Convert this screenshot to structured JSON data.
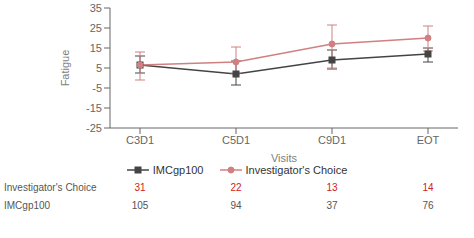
{
  "chart_data": {
    "type": "line",
    "categories": [
      "C3D1",
      "C5D1",
      "C9D1",
      "EOT"
    ],
    "x_label": "Visits",
    "y_label": "Fatigue",
    "ylim": [
      -25,
      35
    ],
    "yticks": [
      -25,
      -15,
      -5,
      5,
      15,
      25,
      35
    ],
    "grid": false,
    "legend": "bottom",
    "series": [
      {
        "name": "IMCgp100",
        "color": "#444444",
        "marker": "square",
        "values": [
          6.5,
          2.0,
          9.0,
          12.0
        ],
        "error_upper": [
          4.5,
          6.5,
          5.0,
          3.0
        ],
        "error_lower": [
          4.0,
          5.5,
          4.5,
          4.0
        ]
      },
      {
        "name": "Investigator's Choice",
        "color": "#d08080",
        "marker": "circle",
        "values": [
          6.5,
          8.0,
          17.0,
          20.0
        ],
        "error_upper": [
          6.5,
          7.5,
          9.5,
          6.0
        ],
        "error_lower": [
          7.5,
          5.5,
          12.0,
          6.5
        ]
      }
    ],
    "n_table": [
      {
        "label": "Investigator's Choice",
        "color": "#cc2222",
        "values": [
          31,
          22,
          13,
          14
        ]
      },
      {
        "label": "IMCgp100",
        "color": "#555555",
        "values": [
          105,
          94,
          37,
          76
        ]
      }
    ]
  }
}
